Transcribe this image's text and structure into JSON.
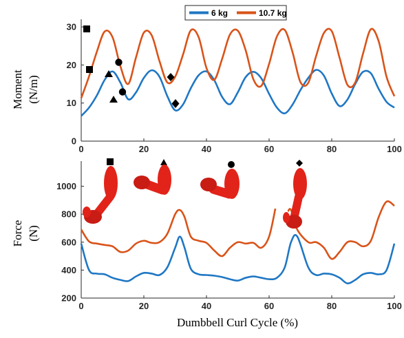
{
  "colors": {
    "series_6kg": "#1f77c4",
    "series_10kg": "#d95319",
    "limb": "#e2231a",
    "marker": "#000000"
  },
  "legend": {
    "entries": [
      "6 kg",
      "10.7 kg"
    ],
    "placement": "top"
  },
  "chart_data": [
    {
      "type": "line",
      "panel": "moment",
      "ylabel_line1": "Moment",
      "ylabel_line2": "(N/m)",
      "xlabel": "",
      "xlim": [
        0,
        100
      ],
      "ylim": [
        0,
        32
      ],
      "yticks": [
        0,
        10,
        20,
        30
      ],
      "xticks": [
        0,
        20,
        40,
        60,
        80,
        100
      ],
      "series": [
        {
          "name": "6 kg",
          "color": "#1f77c4",
          "x": [
            0,
            2.5,
            5,
            7.5,
            10,
            12.5,
            15,
            17.5,
            20,
            22.5,
            25,
            27.5,
            30,
            32.5,
            35,
            37.5,
            40,
            42.5,
            45,
            47.5,
            50,
            52.5,
            55,
            57.5,
            60,
            62.5,
            65,
            67.5,
            70,
            72.5,
            75,
            77.5,
            80,
            82.5,
            85,
            87.5,
            90,
            92.5,
            95,
            97.5,
            100
          ],
          "y": [
            6.6,
            8.8,
            12.0,
            16.1,
            18.3,
            15.4,
            11.0,
            12.8,
            16.6,
            18.6,
            16.9,
            11.8,
            8.1,
            9.6,
            13.9,
            17.3,
            18.3,
            16.0,
            11.6,
            9.7,
            12.8,
            16.8,
            18.2,
            16.5,
            12.4,
            8.8,
            7.3,
            9.6,
            13.4,
            16.6,
            18.7,
            17.2,
            12.5,
            9.2,
            10.9,
            15.0,
            18.2,
            17.8,
            13.7,
            10.3,
            8.8
          ]
        },
        {
          "name": "10.7 kg",
          "color": "#d95319",
          "x": [
            0,
            2.5,
            5,
            7.5,
            10,
            12.5,
            15,
            17.5,
            20,
            22.5,
            25,
            27.5,
            30,
            32.5,
            35,
            37.5,
            40,
            42.5,
            45,
            47.5,
            50,
            52.5,
            55,
            57.5,
            60,
            62.5,
            65,
            67.5,
            70,
            72.5,
            75,
            77.5,
            80,
            82.5,
            85,
            87.5,
            90,
            92.5,
            95,
            97.5,
            100
          ],
          "y": [
            11.3,
            17.0,
            23.5,
            28.8,
            27.3,
            19.7,
            15.0,
            22.0,
            28.5,
            27.8,
            21.0,
            15.4,
            16.9,
            22.7,
            29.1,
            27.3,
            19.2,
            16.1,
            21.6,
            28.0,
            29.0,
            23.9,
            16.2,
            14.5,
            20.3,
            27.5,
            29.2,
            23.3,
            15.5,
            15.3,
            22.3,
            28.4,
            28.9,
            21.9,
            14.8,
            15.4,
            23.0,
            29.4,
            26.2,
            16.9,
            11.8
          ]
        }
      ]
    },
    {
      "type": "line",
      "panel": "force",
      "ylabel_line1": "Force",
      "ylabel_line2": "(N)",
      "xlabel": "Dumbbell Curl Cycle (%)",
      "xlim": [
        0,
        100
      ],
      "ylim": [
        200,
        1180
      ],
      "yticks": [
        200,
        400,
        600,
        800,
        1000
      ],
      "xticks": [
        0,
        20,
        40,
        60,
        80,
        100
      ],
      "series": [
        {
          "name": "6 kg",
          "color": "#1f77c4",
          "x": [
            0,
            2.5,
            5,
            7.5,
            10,
            12.5,
            15,
            17.5,
            20,
            22.5,
            25,
            27.5,
            30,
            31.5,
            33,
            35,
            37.5,
            40,
            42.5,
            45,
            47.5,
            50,
            52.5,
            55,
            57.5,
            60,
            62.5,
            65,
            67,
            69,
            72.5,
            75,
            77.5,
            80,
            82.5,
            85,
            87.5,
            90,
            92.5,
            95,
            97.5,
            100
          ],
          "y": [
            590,
            400,
            375,
            370,
            345,
            330,
            322,
            355,
            380,
            375,
            365,
            420,
            560,
            640,
            560,
            410,
            370,
            365,
            360,
            350,
            335,
            325,
            345,
            355,
            345,
            335,
            345,
            420,
            600,
            640,
            420,
            365,
            375,
            370,
            345,
            305,
            330,
            370,
            380,
            370,
            400,
            590
          ]
        },
        {
          "name": "10.7 kg",
          "color": "#d95319",
          "x": [
            0,
            2.5,
            5,
            7.5,
            10,
            12.5,
            15,
            17.5,
            20,
            22.5,
            25,
            27.5,
            30,
            31.5,
            33,
            35,
            37.5,
            40,
            42.5,
            45,
            47.5,
            50,
            52.5,
            55,
            57.5,
            60,
            62
          ],
          "y": [
            690,
            605,
            590,
            580,
            570,
            530,
            540,
            590,
            610,
            595,
            600,
            660,
            800,
            830,
            780,
            640,
            610,
            595,
            540,
            500,
            560,
            600,
            590,
            595,
            560,
            640,
            840
          ]
        },
        {
          "name": "10.7 kg",
          "color": "#d95319",
          "x": [
            66,
            67,
            69,
            72.5,
            75,
            77.5,
            80,
            82.5,
            85,
            87.5,
            90,
            92.5,
            95,
            97.5,
            100
          ],
          "y": [
            820,
            830,
            690,
            600,
            600,
            560,
            480,
            530,
            600,
            600,
            570,
            610,
            780,
            890,
            860
          ]
        }
      ]
    }
  ]
}
